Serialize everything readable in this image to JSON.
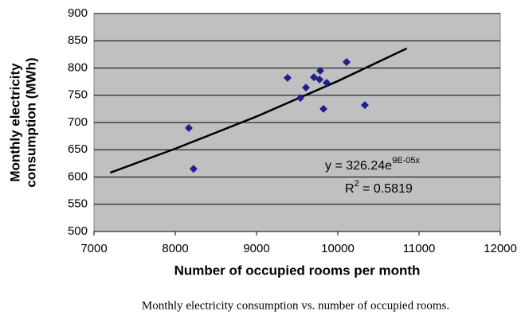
{
  "chart_data": {
    "type": "scatter",
    "xlabel": "Number of occupied rooms per month",
    "ylabel": [
      "Monthly electricity",
      "consumption (MWh)"
    ],
    "caption": "Monthly electricity consumption vs. number of occupied rooms.",
    "x": [
      8167,
      8225,
      9382,
      9539,
      9608,
      9706,
      9784,
      9775,
      9863,
      9824,
      10108,
      10333
    ],
    "values": [
      690,
      615,
      782,
      745,
      764,
      783,
      795,
      779,
      773,
      725,
      811,
      732
    ],
    "color": "#1f1f8f",
    "trendline": {
      "x": [
        7200,
        8000,
        9000,
        10000,
        10850
      ],
      "values": [
        608,
        652,
        711,
        776,
        836
      ],
      "color": "#000000"
    },
    "equation": {
      "text": "y = 326.24e",
      "superscript": "9E-05x"
    },
    "r_squared": {
      "text": "R",
      "superscript": "2",
      "value": " = 0.5819"
    },
    "xlim": [
      7000,
      12000
    ],
    "xticks": [
      7000,
      8000,
      9000,
      10000,
      11000,
      12000
    ],
    "ylim": [
      500,
      900
    ],
    "yticks": [
      500,
      550,
      600,
      650,
      700,
      750,
      800,
      850,
      900
    ],
    "grid": true,
    "background": "#c0c0c0"
  }
}
